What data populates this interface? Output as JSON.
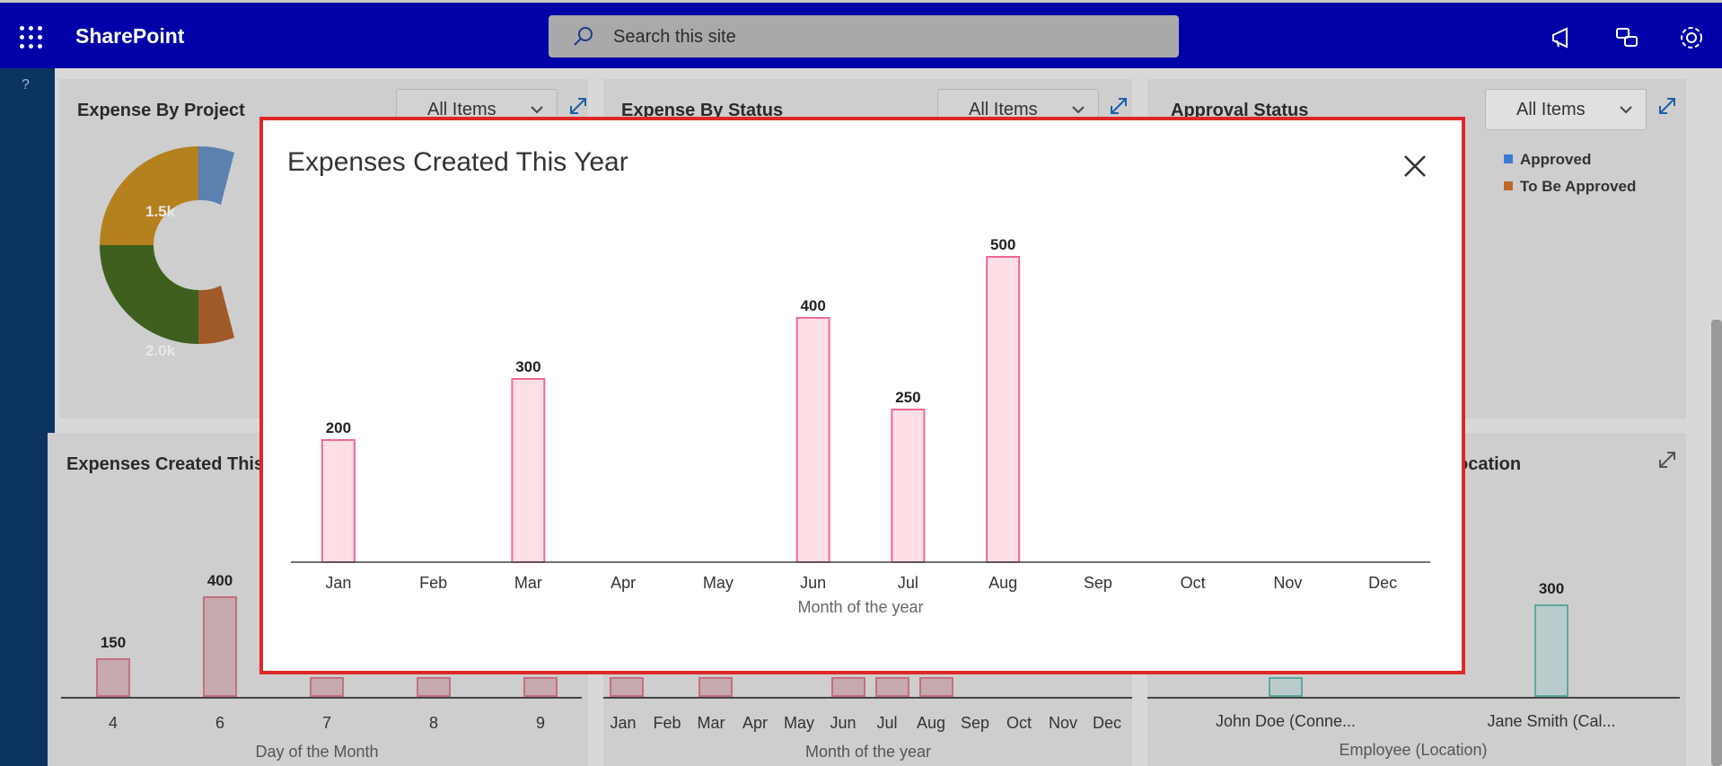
{
  "suitebar": {
    "brand": "SharePoint",
    "search_placeholder": "Search this site"
  },
  "rail": {
    "help": "?"
  },
  "cards": {
    "expense_by_project": {
      "title": "Expense By Project",
      "dropdown": "All Items",
      "labels": [
        "1.5k",
        "2.0k"
      ]
    },
    "expense_by_status": {
      "title": "Expense By Status",
      "dropdown": "All Items"
    },
    "approval_status": {
      "title": "Approval Status",
      "dropdown": "All Items",
      "legend": [
        "Approved",
        "To Be Approved"
      ]
    },
    "expenses_created_day": {
      "title": "Expenses Created This",
      "ticks": [
        "4",
        "6",
        "7",
        "8",
        "9"
      ],
      "axis_title": "Day of the Month",
      "labels": [
        "150",
        "400"
      ]
    },
    "expenses_created_month": {
      "ticks": [
        "Jan",
        "Feb",
        "Mar",
        "Apr",
        "May",
        "Jun",
        "Jul",
        "Aug",
        "Sep",
        "Oct",
        "Nov",
        "Dec"
      ],
      "axis_title": "Month of the year"
    },
    "expense_by_location": {
      "title": "ocation",
      "ticks": [
        "John Doe (Conne...",
        "Jane Smith (Cal..."
      ],
      "axis_title": "Employee (Location)",
      "labels": [
        "300"
      ]
    }
  },
  "modal": {
    "title": "Expenses Created This Year"
  },
  "colors": {
    "bar_fill": "#ffe0e7",
    "bar_stroke": "#f06890",
    "frame": "#e02626",
    "suitebar": "#0000a8"
  },
  "chart_data": {
    "type": "bar",
    "categories": [
      "Jan",
      "Feb",
      "Mar",
      "Apr",
      "May",
      "Jun",
      "Jul",
      "Aug",
      "Sep",
      "Oct",
      "Nov",
      "Dec"
    ],
    "values": [
      200,
      0,
      300,
      0,
      0,
      400,
      250,
      500,
      0,
      0,
      0,
      0
    ],
    "data_labels": [
      "200",
      "",
      "300",
      "",
      "",
      "400",
      "250",
      "500",
      "",
      "",
      "",
      ""
    ],
    "xlabel": "Month of the year",
    "ylabel": "",
    "ylim": [
      0,
      500
    ],
    "grid": false,
    "legend": "none"
  }
}
